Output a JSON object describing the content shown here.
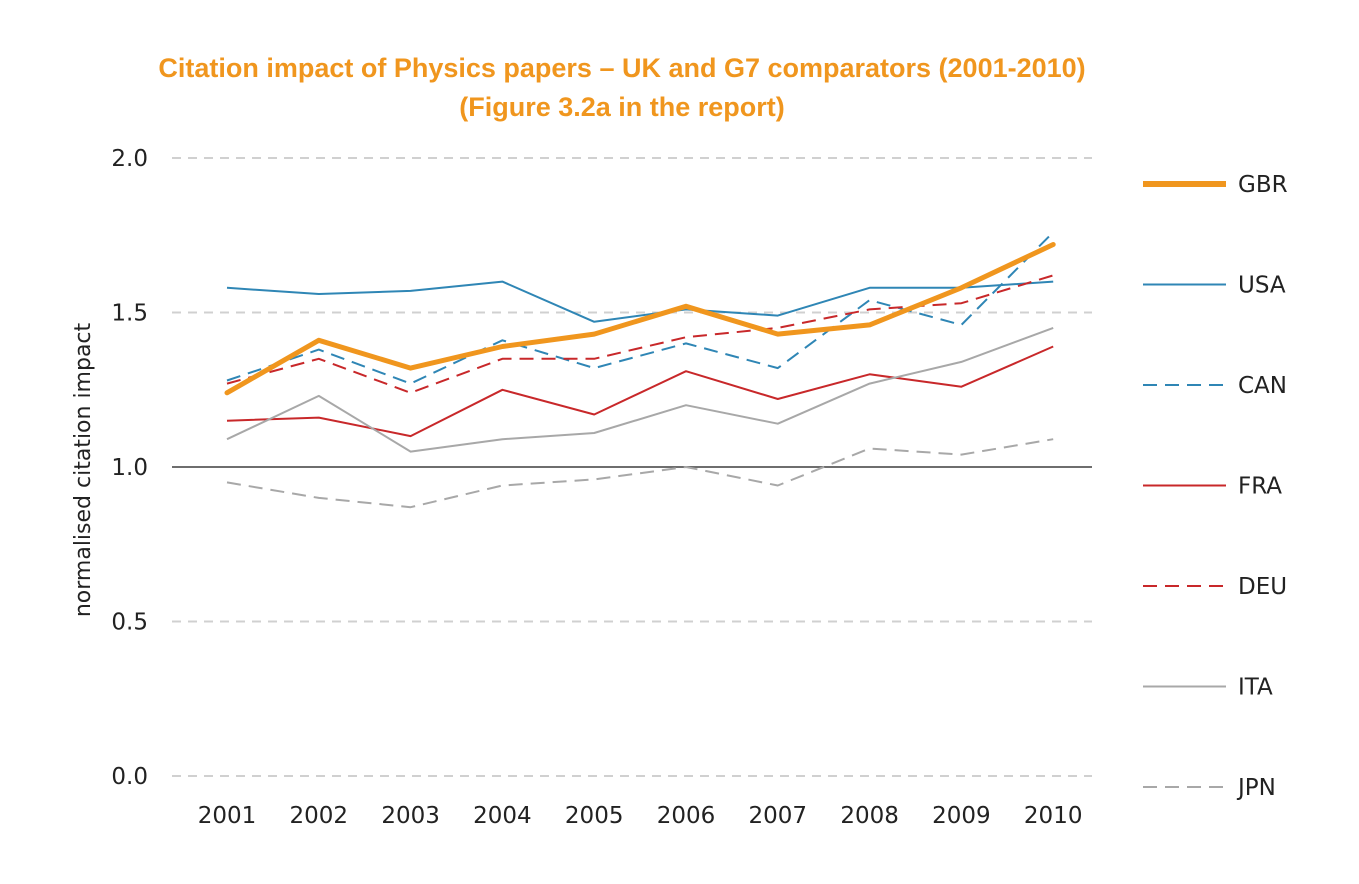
{
  "chart_data": {
    "type": "line",
    "title": "Citation impact of Physics papers – UK and G7 comparators (2001-2010)",
    "subtitle": "(Figure 3.2a in the report)",
    "xlabel": "",
    "ylabel": "normalised citation impact",
    "ylim": [
      0,
      2
    ],
    "yticks": [
      "0.0",
      "0.5",
      "1.0",
      "1.5",
      "2.0"
    ],
    "reference_line": 1.0,
    "grid": "horizontal dashed",
    "legend_position": "right",
    "x": [
      "2001",
      "2002",
      "2003",
      "2004",
      "2005",
      "2006",
      "2007",
      "2008",
      "2009",
      "2010"
    ],
    "series": [
      {
        "name": "GBR",
        "color": "#f0961e",
        "style": "solid-thick",
        "values": [
          1.24,
          1.41,
          1.32,
          1.39,
          1.43,
          1.52,
          1.43,
          1.46,
          1.58,
          1.72
        ]
      },
      {
        "name": "USA",
        "color": "#2f86b5",
        "style": "solid",
        "values": [
          1.58,
          1.56,
          1.57,
          1.6,
          1.47,
          1.51,
          1.49,
          1.58,
          1.58,
          1.6
        ]
      },
      {
        "name": "CAN",
        "color": "#2f86b5",
        "style": "dashed",
        "values": [
          1.28,
          1.38,
          1.27,
          1.41,
          1.32,
          1.4,
          1.32,
          1.54,
          1.46,
          1.76
        ]
      },
      {
        "name": "FRA",
        "color": "#c8282a",
        "style": "solid",
        "values": [
          1.15,
          1.16,
          1.1,
          1.25,
          1.17,
          1.31,
          1.22,
          1.3,
          1.26,
          1.39
        ]
      },
      {
        "name": "DEU",
        "color": "#c8282a",
        "style": "dashed",
        "values": [
          1.27,
          1.35,
          1.24,
          1.35,
          1.35,
          1.42,
          1.45,
          1.51,
          1.53,
          1.62
        ]
      },
      {
        "name": "ITA",
        "color": "#a8a8a8",
        "style": "solid",
        "values": [
          1.09,
          1.23,
          1.05,
          1.09,
          1.11,
          1.2,
          1.14,
          1.27,
          1.34,
          1.45
        ]
      },
      {
        "name": "JPN",
        "color": "#a8a8a8",
        "style": "dashed",
        "values": [
          0.95,
          0.9,
          0.87,
          0.94,
          0.96,
          1.0,
          0.94,
          1.06,
          1.04,
          1.09
        ]
      }
    ]
  }
}
